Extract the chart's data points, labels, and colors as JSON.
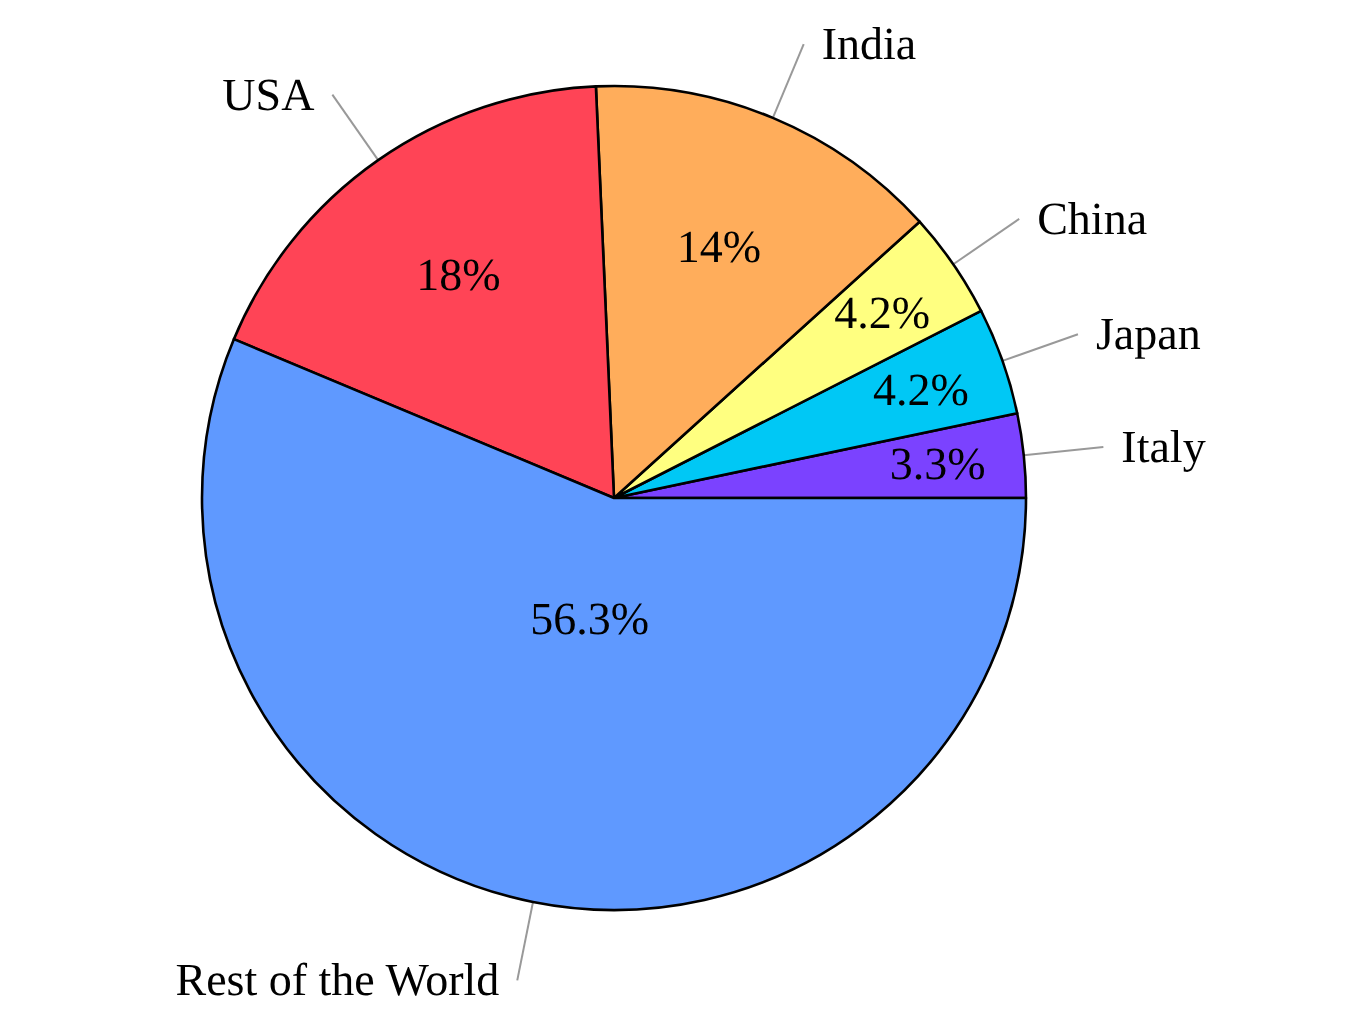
{
  "chart_data": {
    "type": "pie",
    "categories": [
      "Italy",
      "Japan",
      "China",
      "India",
      "USA",
      "Rest of the World"
    ],
    "values": [
      3.3,
      4.2,
      4.2,
      14,
      18,
      56.3
    ],
    "colors": [
      "#7b42ff",
      "#00c8f5",
      "#ffff80",
      "#ffad5b",
      "#ff4456",
      "#5f99ff"
    ],
    "value_labels": [
      "3.3%",
      "4.2%",
      "4.2%",
      "14%",
      "18%",
      "56.3%"
    ]
  }
}
